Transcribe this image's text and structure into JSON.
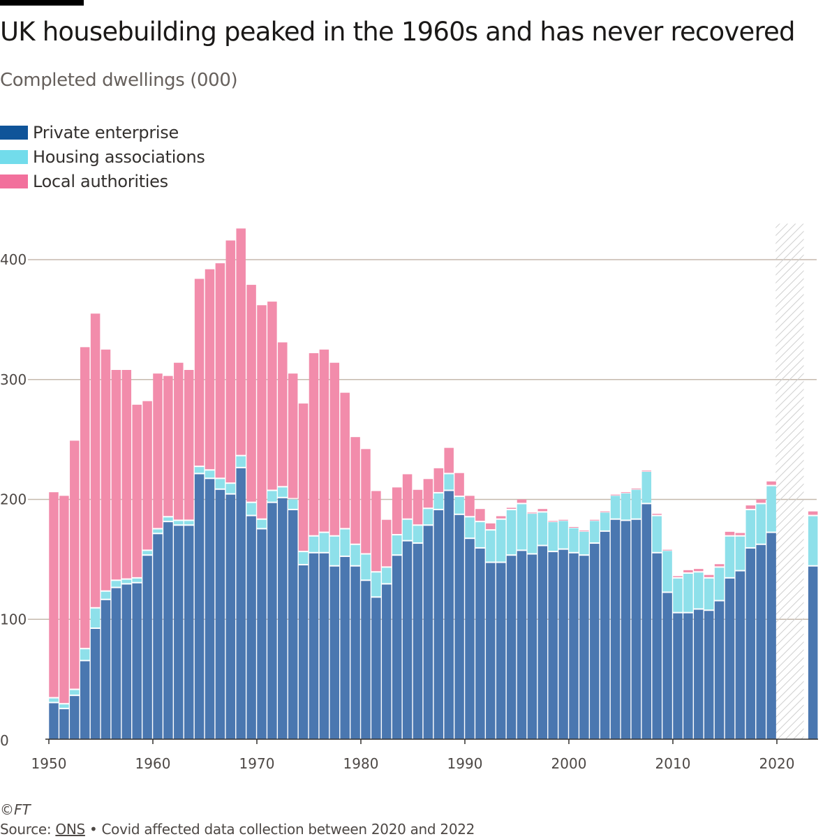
{
  "header": {
    "title": "UK housebuilding peaked in the 1960s and has never recovered",
    "subtitle": "Completed dwellings (000)"
  },
  "footer": {
    "copyright": "©FT",
    "source_label": "Source: ",
    "source_link": "ONS",
    "note": " • Covid affected data collection between 2020 and 2022"
  },
  "chart_data": {
    "type": "bar",
    "stacked": true,
    "title": "UK housebuilding peaked in the 1960s and has never recovered",
    "ylabel": "Completed dwellings (000)",
    "xlabel": "",
    "ylim": [
      0,
      430
    ],
    "yticks": [
      0,
      100,
      200,
      300,
      400
    ],
    "xticks": [
      1950,
      1960,
      1970,
      1980,
      1990,
      2000,
      2010,
      2020
    ],
    "legend_placement": "top-left",
    "shaded_range": {
      "from": 2020,
      "to": 2022,
      "label": "Covid affected data collection"
    },
    "colors": {
      "private": "#4a77b0",
      "ha": "#8ee0ea",
      "la": "#f28cab"
    },
    "legend": [
      "Private enterprise",
      "Housing associations",
      "Local authorities"
    ],
    "years": [
      1950,
      1951,
      1952,
      1953,
      1954,
      1955,
      1956,
      1957,
      1958,
      1959,
      1960,
      1961,
      1962,
      1963,
      1964,
      1965,
      1966,
      1967,
      1968,
      1969,
      1970,
      1971,
      1972,
      1973,
      1974,
      1975,
      1976,
      1977,
      1978,
      1979,
      1980,
      1981,
      1982,
      1983,
      1984,
      1985,
      1986,
      1987,
      1988,
      1989,
      1990,
      1991,
      1992,
      1993,
      1994,
      1995,
      1996,
      1997,
      1998,
      1999,
      2000,
      2001,
      2002,
      2003,
      2004,
      2005,
      2006,
      2007,
      2008,
      2009,
      2010,
      2011,
      2012,
      2013,
      2014,
      2015,
      2016,
      2017,
      2018,
      2019,
      2023
    ],
    "series": [
      {
        "name": "Private enterprise",
        "values": [
          30,
          25,
          36,
          65,
          92,
          116,
          126,
          129,
          130,
          153,
          171,
          181,
          178,
          178,
          221,
          217,
          208,
          204,
          226,
          186,
          175,
          197,
          201,
          191,
          145,
          155,
          155,
          144,
          152,
          144,
          132,
          118,
          129,
          153,
          165,
          163,
          178,
          191,
          207,
          187,
          167,
          159,
          147,
          147,
          153,
          157,
          154,
          161,
          156,
          158,
          155,
          153,
          163,
          173,
          183,
          182,
          183,
          196,
          155,
          122,
          105,
          105,
          108,
          107,
          115,
          134,
          140,
          159,
          162,
          172,
          144
        ]
      },
      {
        "name": "Housing associations",
        "values": [
          4,
          4,
          5,
          10,
          17,
          7,
          6,
          4,
          4,
          4,
          4,
          4,
          4,
          4,
          6,
          7,
          9,
          9,
          10,
          11,
          8,
          10,
          9,
          9,
          11,
          14,
          17,
          25,
          23,
          18,
          22,
          21,
          14,
          17,
          18,
          15,
          14,
          14,
          14,
          15,
          18,
          22,
          27,
          36,
          38,
          39,
          34,
          28,
          25,
          24,
          21,
          20,
          19,
          16,
          20,
          23,
          25,
          27,
          31,
          35,
          29,
          33,
          31,
          27,
          28,
          35,
          29,
          32,
          34,
          39,
          42
        ]
      },
      {
        "name": "Local authorities",
        "values": [
          172,
          174,
          208,
          252,
          246,
          202,
          176,
          175,
          145,
          125,
          130,
          118,
          132,
          126,
          157,
          168,
          180,
          203,
          190,
          182,
          179,
          158,
          121,
          105,
          124,
          153,
          153,
          145,
          114,
          90,
          88,
          68,
          40,
          40,
          38,
          30,
          25,
          21,
          22,
          20,
          18,
          11,
          6,
          3,
          2,
          4,
          1,
          3,
          1,
          1,
          1,
          1,
          1,
          1,
          1,
          1,
          1,
          1,
          2,
          1,
          2,
          3,
          3,
          3,
          3,
          4,
          3,
          4,
          4,
          4,
          4
        ]
      }
    ]
  }
}
